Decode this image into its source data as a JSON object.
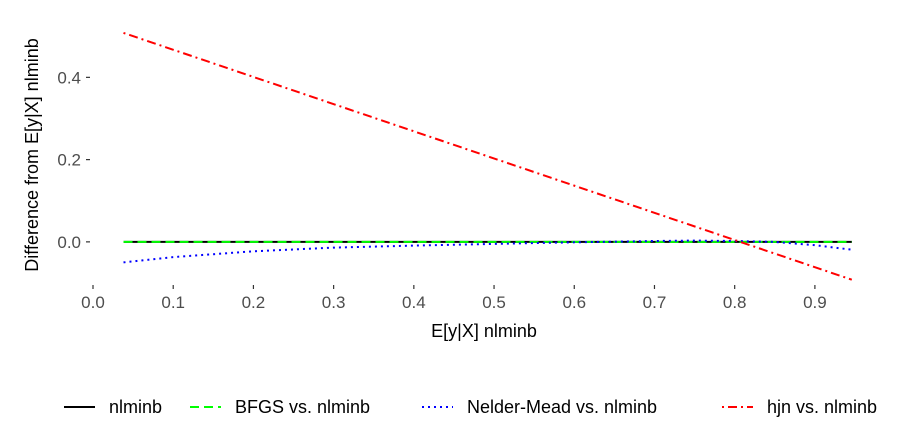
{
  "chart_data": {
    "type": "line",
    "title": "",
    "xlabel": "E[y|X] nlminb",
    "ylabel": "Difference from E[y|X] nlminb",
    "xlim": [
      0.0,
      0.95
    ],
    "ylim": [
      -0.1,
      0.52
    ],
    "x_ticks": [
      0.0,
      0.1,
      0.2,
      0.3,
      0.4,
      0.5,
      0.6,
      0.7,
      0.8,
      0.9
    ],
    "x_tick_labels": [
      "0.0",
      "0.1",
      "0.2",
      "0.3",
      "0.4",
      "0.5",
      "0.6",
      "0.7",
      "0.8",
      "0.9"
    ],
    "y_ticks": [
      0.0,
      0.2,
      0.4
    ],
    "y_tick_labels": [
      "0.0",
      "0.2",
      "0.4"
    ],
    "grid": false,
    "legend_position": "bottom",
    "series": [
      {
        "name": "nlminb",
        "color": "#000000",
        "dash": "solid",
        "x": [
          0.038,
          0.946
        ],
        "y": [
          0.0,
          0.0
        ]
      },
      {
        "name": "BFGS vs. nlminb",
        "color": "#00ff00",
        "dash": "dashed",
        "x": [
          0.038,
          0.946
        ],
        "y": [
          0.0,
          0.0
        ]
      },
      {
        "name": "Nelder-Mead vs. nlminb",
        "color": "#0000ff",
        "dash": "dotted",
        "x": [
          0.038,
          0.1,
          0.2,
          0.3,
          0.4,
          0.5,
          0.6,
          0.7,
          0.75,
          0.8,
          0.85,
          0.9,
          0.946
        ],
        "y": [
          -0.05,
          -0.037,
          -0.023,
          -0.014,
          -0.009,
          -0.005,
          -0.001,
          0.002,
          0.003,
          0.002,
          0.0,
          -0.008,
          -0.019
        ]
      },
      {
        "name": "hjn vs. nlminb",
        "color": "#ff0000",
        "dash": "dotdash",
        "x": [
          0.038,
          0.946
        ],
        "y": [
          0.508,
          -0.092
        ]
      }
    ]
  }
}
